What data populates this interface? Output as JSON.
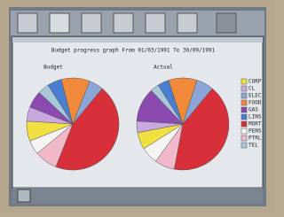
{
  "chart_data": {
    "type": "pie",
    "title": "Budget progress graph From 01/03/1991 To 30/09/1991",
    "categories": [
      "CORP",
      "CL",
      "ELEC",
      "FOOD",
      "GAS",
      "LINS",
      "MORT",
      "PENS",
      "PTRL",
      "TEL"
    ],
    "colors": [
      "#f2e040",
      "#c9a8e0",
      "#8aa6d8",
      "#f08a3a",
      "#8a4ab0",
      "#4a7ed0",
      "#d8303a",
      "#f4f4f4",
      "#f0b8c8",
      "#a8c8d8"
    ],
    "series": [
      {
        "name": "Budget",
        "values": [
          7,
          5,
          5,
          10,
          6,
          5,
          45,
          5,
          8,
          4
        ]
      },
      {
        "name": "Actual",
        "values": [
          6,
          4,
          6,
          10,
          12,
          4,
          42,
          6,
          7,
          3
        ]
      }
    ]
  }
}
